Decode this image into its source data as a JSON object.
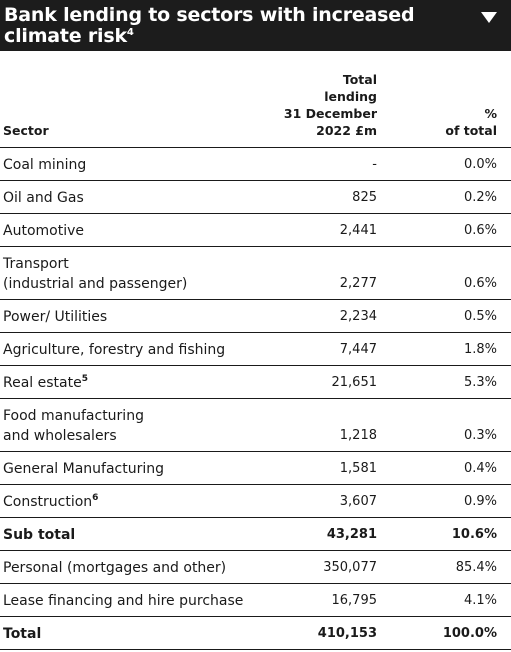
{
  "title": {
    "text": "Bank lending to sectors with increased climate risk",
    "footnote": "4"
  },
  "headers": {
    "sector": "Sector",
    "total_line1": "Total",
    "total_line2": "lending",
    "total_line3": "31 December",
    "total_line4": "2022 £m",
    "pct_line1": "%",
    "pct_line2": "of total"
  },
  "rows": [
    {
      "sector": "Coal mining",
      "lending": "-",
      "pct": "0.0%"
    },
    {
      "sector": "Oil and Gas",
      "lending": "825",
      "pct": "0.2%"
    },
    {
      "sector": "Automotive",
      "lending": "2,441",
      "pct": "0.6%"
    },
    {
      "sector_line1": "Transport",
      "sector_line2": "(industrial and passenger)",
      "lending": "2,277",
      "pct": "0.6%"
    },
    {
      "sector": "Power/ Utilities",
      "lending": "2,234",
      "pct": "0.5%"
    },
    {
      "sector": "Agriculture, forestry and fishing",
      "lending": "7,447",
      "pct": "1.8%"
    },
    {
      "sector": "Real estate",
      "footnote": "5",
      "lending": "21,651",
      "pct": "5.3%"
    },
    {
      "sector_line1": "Food manufacturing",
      "sector_line2": "and wholesalers",
      "lending": "1,218",
      "pct": "0.3%"
    },
    {
      "sector": "General Manufacturing",
      "lending": "1,581",
      "pct": "0.4%"
    },
    {
      "sector": "Construction",
      "footnote": "6",
      "lending": "3,607",
      "pct": "0.9%"
    },
    {
      "sector": "Sub total",
      "lending": "43,281",
      "pct": "10.6%"
    },
    {
      "sector": "Personal (mortgages and other)",
      "lending": "350,077",
      "pct": "85.4%"
    },
    {
      "sector": "Lease financing and hire purchase",
      "lending": "16,795",
      "pct": "4.1%"
    },
    {
      "sector": "Total",
      "lending": "410,153",
      "pct": "100.0%"
    }
  ],
  "icons": {
    "toggle": "chevron-down-icon"
  }
}
